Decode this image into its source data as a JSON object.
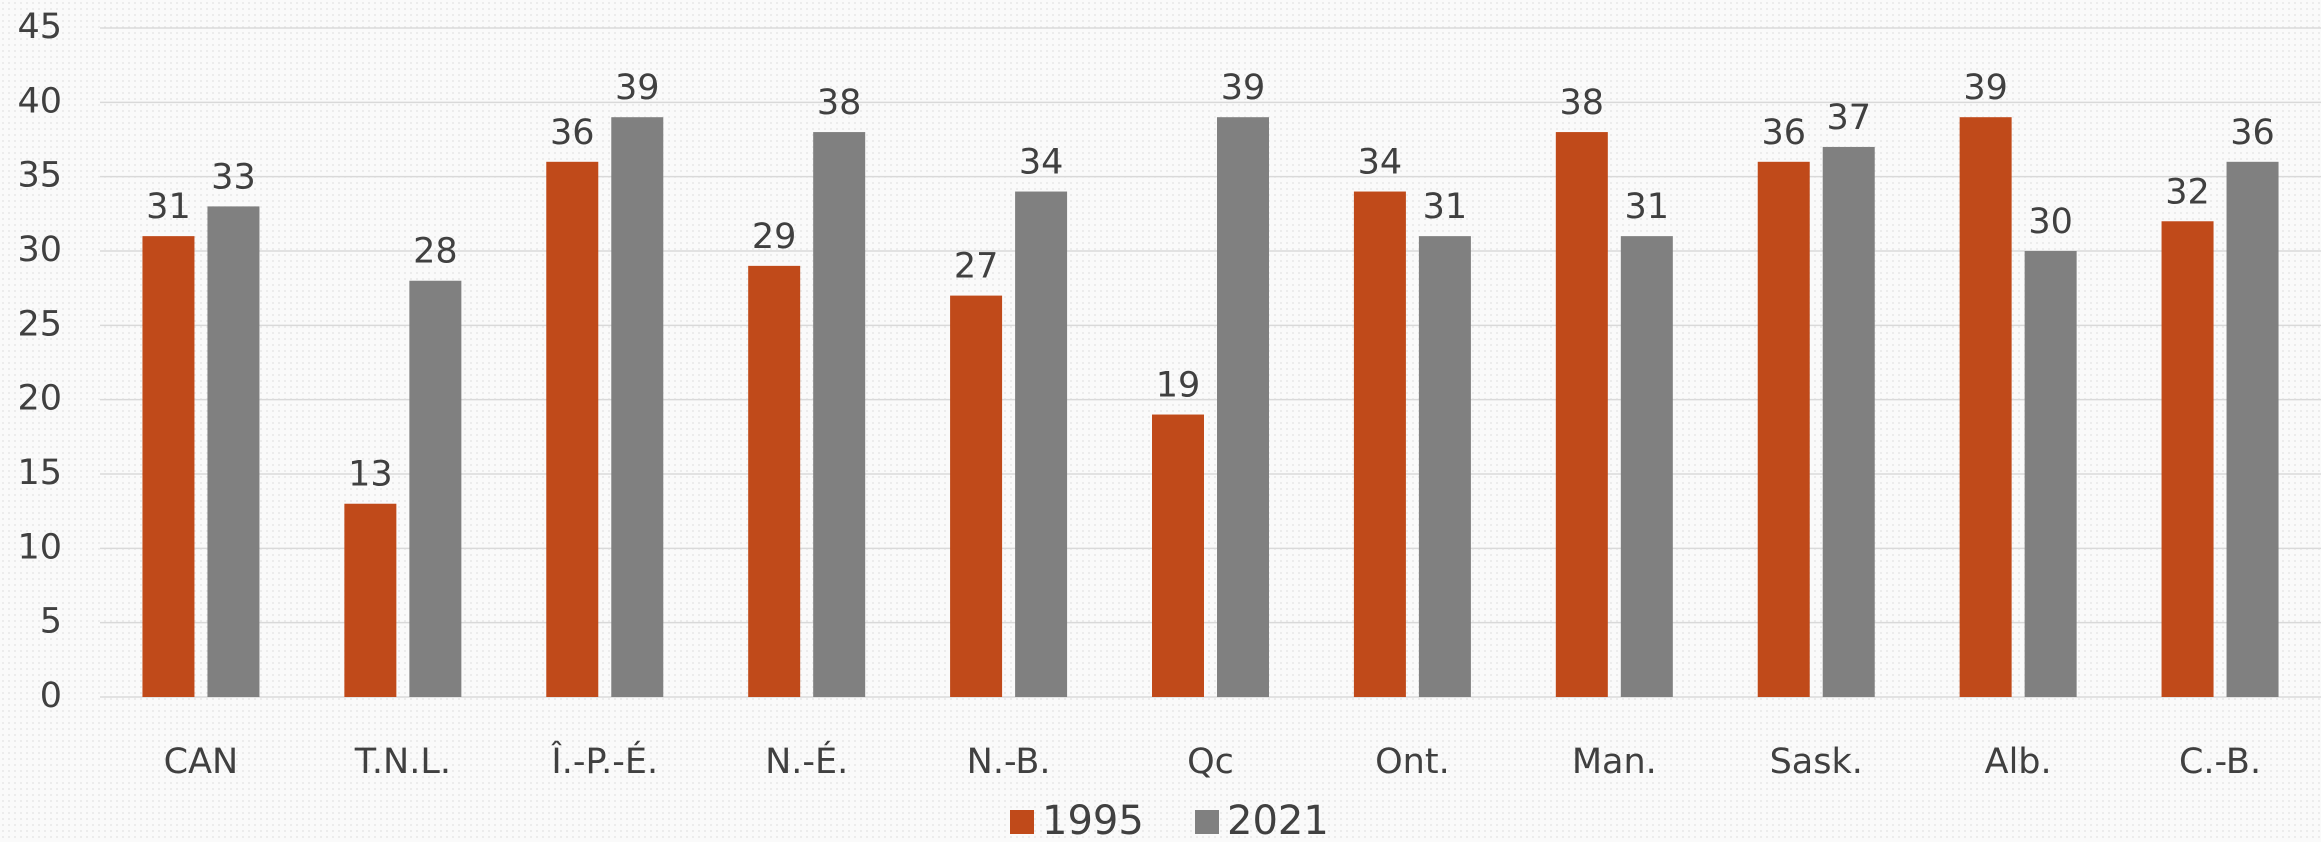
{
  "chart_data": {
    "type": "bar",
    "categories": [
      "CAN",
      "T.N.L.",
      "Î.-P.-É.",
      "N.-É.",
      "N.-B.",
      "Qc",
      "Ont.",
      "Man.",
      "Sask.",
      "Alb.",
      "C.-B."
    ],
    "series": [
      {
        "name": "1995",
        "color": "#c04a1a",
        "values": [
          31,
          13,
          36,
          29,
          27,
          19,
          34,
          38,
          36,
          39,
          32
        ]
      },
      {
        "name": "2021",
        "color": "#808080",
        "values": [
          33,
          28,
          39,
          38,
          34,
          39,
          31,
          31,
          37,
          30,
          36
        ]
      }
    ],
    "ylim": [
      0,
      45
    ],
    "yticks": [
      0,
      5,
      10,
      15,
      20,
      25,
      30,
      35,
      40,
      45
    ],
    "grid": true,
    "legend": "bottom"
  }
}
